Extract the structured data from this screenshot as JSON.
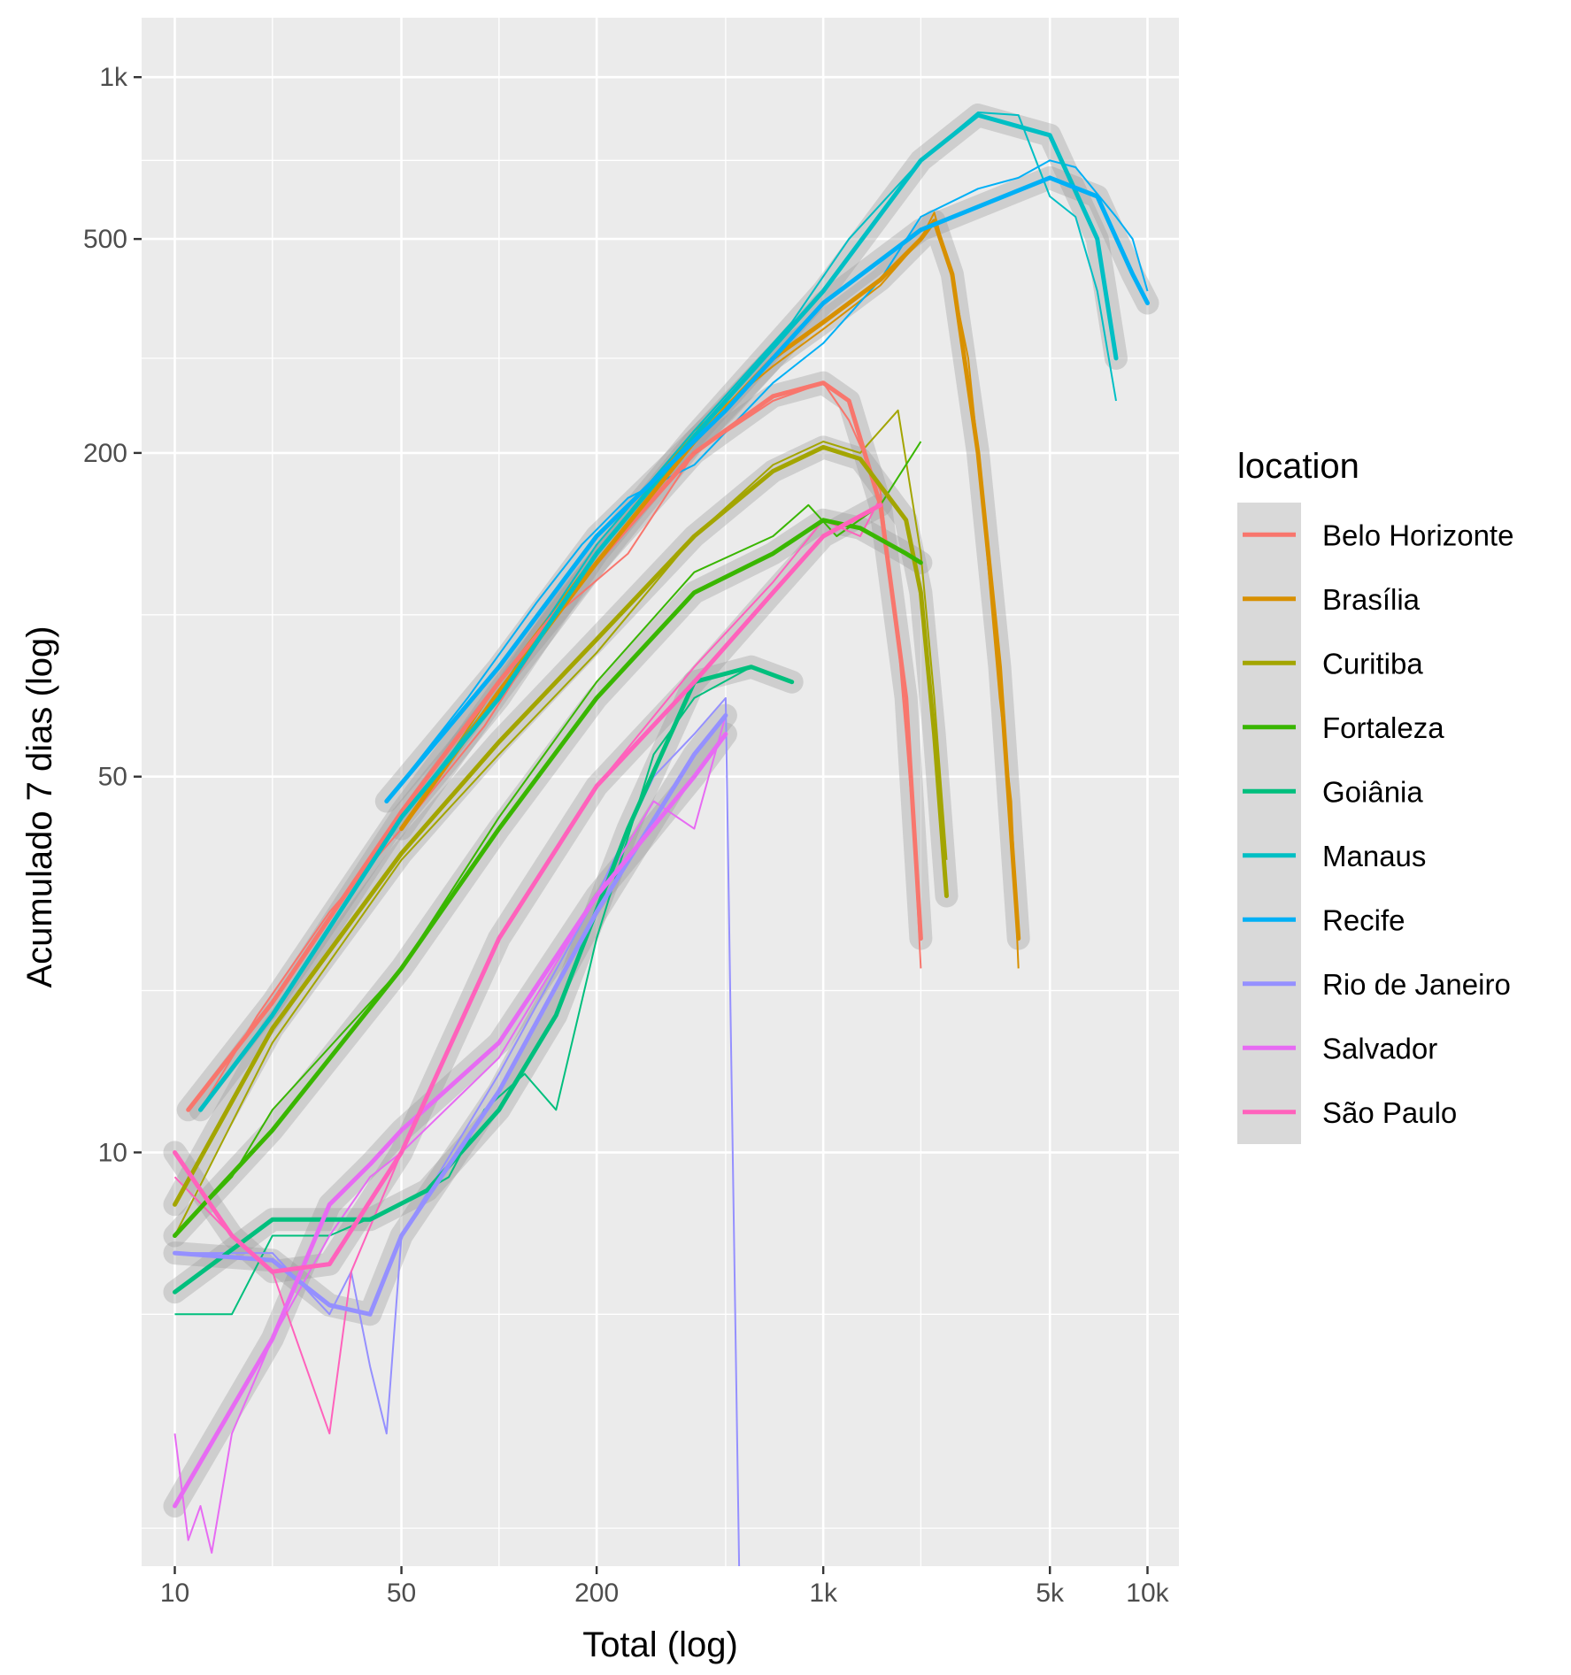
{
  "chart_data": {
    "type": "line",
    "xlabel": "Total (log)",
    "ylabel": "Acumulado 7 dias (log)",
    "x_scale": "log",
    "y_scale": "log",
    "xlim": [
      7.9,
      12500
    ],
    "ylim": [
      1.7,
      1290
    ],
    "x_ticks": [
      {
        "value": 10,
        "label": "10"
      },
      {
        "value": 50,
        "label": "50"
      },
      {
        "value": 200,
        "label": "200"
      },
      {
        "value": 1000,
        "label": "1k"
      },
      {
        "value": 5000,
        "label": "5k"
      },
      {
        "value": 10000,
        "label": "10k"
      }
    ],
    "x_minor_ticks": [
      20,
      100,
      500,
      2000
    ],
    "y_ticks": [
      {
        "value": 10,
        "label": "10"
      },
      {
        "value": 50,
        "label": "50"
      },
      {
        "value": 200,
        "label": "200"
      },
      {
        "value": 500,
        "label": "500"
      },
      {
        "value": 1000,
        "label": "1k"
      }
    ],
    "y_minor_ticks": [
      2,
      5,
      20,
      100,
      300,
      700
    ],
    "grid": true,
    "panel_background": "#ebebeb",
    "legend": {
      "title": "location",
      "position": "right"
    },
    "series": [
      {
        "name": "Belo Horizonte",
        "color": "#F8766D",
        "smooth": [
          [
            11,
            12
          ],
          [
            20,
            19
          ],
          [
            50,
            43
          ],
          [
            100,
            75
          ],
          [
            200,
            125
          ],
          [
            400,
            200
          ],
          [
            700,
            255
          ],
          [
            1000,
            270
          ],
          [
            1200,
            250
          ],
          [
            1500,
            160
          ],
          [
            1800,
            70
          ],
          [
            2000,
            25
          ]
        ],
        "raw": [
          [
            12,
            12
          ],
          [
            18,
            18
          ],
          [
            30,
            28
          ],
          [
            50,
            40
          ],
          [
            90,
            62
          ],
          [
            150,
            100
          ],
          [
            250,
            130
          ],
          [
            400,
            200
          ],
          [
            700,
            250
          ],
          [
            1000,
            270
          ],
          [
            1200,
            230
          ],
          [
            1500,
            170
          ],
          [
            1700,
            90
          ],
          [
            1800,
            60
          ],
          [
            1900,
            40
          ],
          [
            2000,
            22
          ]
        ]
      },
      {
        "name": "Brasília",
        "color": "#D89000",
        "smooth": [
          [
            50,
            40
          ],
          [
            100,
            72
          ],
          [
            200,
            125
          ],
          [
            400,
            210
          ],
          [
            700,
            300
          ],
          [
            1000,
            350
          ],
          [
            1500,
            420
          ],
          [
            2000,
            500
          ],
          [
            2200,
            540
          ],
          [
            2500,
            430
          ],
          [
            3000,
            200
          ],
          [
            3500,
            80
          ],
          [
            4000,
            25
          ]
        ],
        "raw": [
          [
            50,
            40
          ],
          [
            100,
            75
          ],
          [
            200,
            130
          ],
          [
            400,
            220
          ],
          [
            700,
            290
          ],
          [
            1000,
            340
          ],
          [
            1500,
            410
          ],
          [
            2000,
            500
          ],
          [
            2200,
            560
          ],
          [
            2500,
            420
          ],
          [
            2800,
            300
          ],
          [
            3000,
            200
          ],
          [
            3200,
            130
          ],
          [
            3500,
            70
          ],
          [
            3800,
            45
          ],
          [
            4000,
            22
          ]
        ]
      },
      {
        "name": "Curitiba",
        "color": "#A3A500",
        "smooth": [
          [
            10,
            8
          ],
          [
            20,
            17
          ],
          [
            50,
            36
          ],
          [
            100,
            58
          ],
          [
            200,
            90
          ],
          [
            400,
            140
          ],
          [
            700,
            185
          ],
          [
            1000,
            205
          ],
          [
            1300,
            195
          ],
          [
            1800,
            150
          ],
          [
            2000,
            110
          ],
          [
            2200,
            60
          ],
          [
            2400,
            30
          ]
        ],
        "raw": [
          [
            10,
            7
          ],
          [
            20,
            16
          ],
          [
            50,
            35
          ],
          [
            100,
            55
          ],
          [
            200,
            85
          ],
          [
            400,
            140
          ],
          [
            700,
            190
          ],
          [
            1000,
            210
          ],
          [
            1300,
            200
          ],
          [
            1700,
            240
          ],
          [
            2000,
            130
          ],
          [
            2200,
            70
          ],
          [
            2400,
            35
          ]
        ]
      },
      {
        "name": "Fortaleza",
        "color": "#39B600",
        "smooth": [
          [
            10,
            7
          ],
          [
            20,
            11
          ],
          [
            50,
            22
          ],
          [
            100,
            40
          ],
          [
            200,
            70
          ],
          [
            400,
            110
          ],
          [
            700,
            130
          ],
          [
            1000,
            150
          ],
          [
            1300,
            145
          ],
          [
            1800,
            130
          ],
          [
            2000,
            125
          ]
        ],
        "raw": [
          [
            10,
            7
          ],
          [
            15,
            9
          ],
          [
            20,
            12
          ],
          [
            50,
            22
          ],
          [
            100,
            42
          ],
          [
            200,
            75
          ],
          [
            400,
            120
          ],
          [
            700,
            140
          ],
          [
            900,
            160
          ],
          [
            1100,
            140
          ],
          [
            1500,
            160
          ],
          [
            2000,
            210
          ]
        ]
      },
      {
        "name": "Goiânia",
        "color": "#00BF7D",
        "smooth": [
          [
            10,
            5.5
          ],
          [
            20,
            7.5
          ],
          [
            40,
            7.5
          ],
          [
            60,
            8.5
          ],
          [
            100,
            12
          ],
          [
            150,
            18
          ],
          [
            250,
            40
          ],
          [
            400,
            75
          ],
          [
            600,
            80
          ],
          [
            800,
            75
          ]
        ],
        "raw": [
          [
            10,
            5
          ],
          [
            15,
            5
          ],
          [
            20,
            7
          ],
          [
            30,
            7
          ],
          [
            50,
            8
          ],
          [
            70,
            9
          ],
          [
            90,
            12
          ],
          [
            120,
            14
          ],
          [
            150,
            12
          ],
          [
            200,
            25
          ],
          [
            300,
            55
          ],
          [
            400,
            70
          ],
          [
            600,
            80
          ],
          [
            800,
            75
          ]
        ]
      },
      {
        "name": "Manaus",
        "color": "#00BFC4",
        "smooth": [
          [
            12,
            12
          ],
          [
            20,
            18
          ],
          [
            50,
            42
          ],
          [
            100,
            70
          ],
          [
            200,
            130
          ],
          [
            400,
            215
          ],
          [
            1000,
            400
          ],
          [
            2000,
            700
          ],
          [
            3000,
            850
          ],
          [
            5000,
            780
          ],
          [
            7000,
            500
          ],
          [
            8000,
            300
          ]
        ],
        "raw": [
          [
            12,
            12
          ],
          [
            20,
            18
          ],
          [
            50,
            42
          ],
          [
            100,
            72
          ],
          [
            200,
            135
          ],
          [
            400,
            220
          ],
          [
            800,
            350
          ],
          [
            1200,
            500
          ],
          [
            2000,
            700
          ],
          [
            3000,
            860
          ],
          [
            4000,
            850
          ],
          [
            5000,
            600
          ],
          [
            6000,
            550
          ],
          [
            7000,
            400
          ],
          [
            8000,
            250
          ]
        ]
      },
      {
        "name": "Recife",
        "color": "#00B0F6",
        "smooth": [
          [
            45,
            45
          ],
          [
            100,
            80
          ],
          [
            200,
            140
          ],
          [
            500,
            240
          ],
          [
            1000,
            380
          ],
          [
            2000,
            520
          ],
          [
            5000,
            650
          ],
          [
            7000,
            600
          ],
          [
            9000,
            430
          ],
          [
            10000,
            380
          ]
        ],
        "raw": [
          [
            45,
            45
          ],
          [
            80,
            70
          ],
          [
            130,
            105
          ],
          [
            180,
            135
          ],
          [
            250,
            165
          ],
          [
            400,
            190
          ],
          [
            700,
            270
          ],
          [
            1000,
            320
          ],
          [
            1500,
            420
          ],
          [
            2000,
            550
          ],
          [
            3000,
            620
          ],
          [
            4000,
            650
          ],
          [
            5000,
            700
          ],
          [
            6000,
            680
          ],
          [
            8000,
            550
          ],
          [
            9000,
            500
          ],
          [
            10000,
            400
          ]
        ]
      },
      {
        "name": "Rio de Janeiro",
        "color": "#9590FF",
        "smooth": [
          [
            10,
            6.5
          ],
          [
            20,
            6.3
          ],
          [
            30,
            5.2
          ],
          [
            40,
            5
          ],
          [
            50,
            7
          ],
          [
            100,
            13
          ],
          [
            200,
            28
          ],
          [
            400,
            55
          ],
          [
            500,
            65
          ]
        ],
        "raw": [
          [
            10,
            6.5
          ],
          [
            20,
            6.5
          ],
          [
            30,
            5
          ],
          [
            35,
            6
          ],
          [
            40,
            4
          ],
          [
            45,
            3
          ],
          [
            50,
            7
          ],
          [
            100,
            14
          ],
          [
            200,
            30
          ],
          [
            300,
            50
          ],
          [
            400,
            60
          ],
          [
            500,
            70
          ],
          [
            550,
            1.7
          ]
        ]
      },
      {
        "name": "Salvador",
        "color": "#E76BF3",
        "smooth": [
          [
            10,
            2.2
          ],
          [
            20,
            4.5
          ],
          [
            30,
            8
          ],
          [
            40,
            9.5
          ],
          [
            50,
            11
          ],
          [
            100,
            16
          ],
          [
            200,
            30
          ],
          [
            400,
            50
          ],
          [
            500,
            60
          ]
        ],
        "raw": [
          [
            10,
            3
          ],
          [
            11,
            1.9
          ],
          [
            12,
            2.2
          ],
          [
            13,
            1.8
          ],
          [
            15,
            3
          ],
          [
            20,
            4.5
          ],
          [
            30,
            7
          ],
          [
            40,
            9
          ],
          [
            50,
            10
          ],
          [
            100,
            15
          ],
          [
            200,
            30
          ],
          [
            300,
            45
          ],
          [
            400,
            40
          ],
          [
            500,
            65
          ]
        ]
      },
      {
        "name": "São Paulo",
        "color": "#FF62BC",
        "smooth": [
          [
            10,
            10
          ],
          [
            15,
            7
          ],
          [
            20,
            6
          ],
          [
            30,
            6.2
          ],
          [
            50,
            10
          ],
          [
            100,
            25
          ],
          [
            200,
            48
          ],
          [
            400,
            75
          ],
          [
            700,
            110
          ],
          [
            1000,
            140
          ],
          [
            1500,
            160
          ]
        ],
        "raw": [
          [
            10,
            9
          ],
          [
            15,
            7
          ],
          [
            20,
            6
          ],
          [
            30,
            3
          ],
          [
            35,
            6
          ],
          [
            50,
            10
          ],
          [
            100,
            25
          ],
          [
            200,
            48
          ],
          [
            400,
            80
          ],
          [
            700,
            115
          ],
          [
            1000,
            150
          ],
          [
            1300,
            140
          ],
          [
            1500,
            165
          ]
        ]
      }
    ]
  }
}
